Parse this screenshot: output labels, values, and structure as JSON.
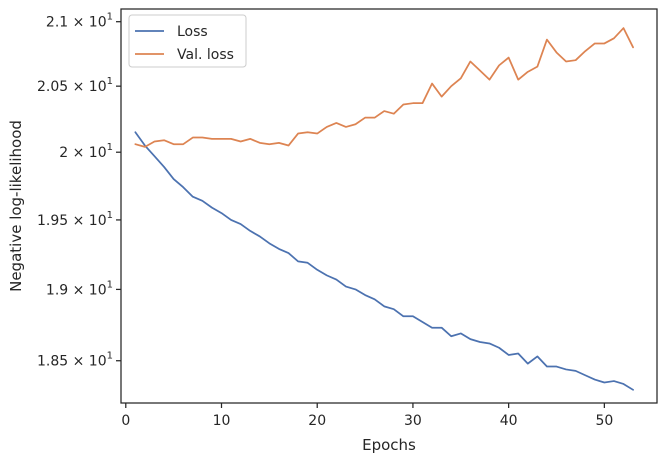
{
  "chart_data": {
    "type": "line",
    "title": "",
    "xlabel": "Epochs",
    "ylabel": "Negative log-likelihood",
    "xlim": [
      -0.5,
      55.5
    ],
    "ylim": [
      18.21,
      21.1
    ],
    "xticks": [
      0,
      10,
      20,
      30,
      40,
      50
    ],
    "yticks": [
      {
        "value": 18.5,
        "label": "1.85 × 10",
        "exp": "1"
      },
      {
        "value": 19.0,
        "label": "1.9 × 10",
        "exp": "1"
      },
      {
        "value": 19.5,
        "label": "1.95 × 10",
        "exp": "1"
      },
      {
        "value": 20.0,
        "label": "2 × 10",
        "exp": "1"
      },
      {
        "value": 20.5,
        "label": "2.05 × 10",
        "exp": "1"
      },
      {
        "value": 21.0,
        "label": "2.1 × 10",
        "exp": "1"
      }
    ],
    "y_scale": "log",
    "grid": false,
    "legend_position": "top-left",
    "x": [
      1,
      2,
      3,
      4,
      5,
      6,
      7,
      8,
      9,
      10,
      11,
      12,
      13,
      14,
      15,
      16,
      17,
      18,
      19,
      20,
      21,
      22,
      23,
      24,
      25,
      26,
      27,
      28,
      29,
      30,
      31,
      32,
      33,
      34,
      35,
      36,
      37,
      38,
      39,
      40,
      41,
      42,
      43,
      44,
      45,
      46,
      47,
      48,
      49,
      50,
      51,
      52,
      53
    ],
    "series": [
      {
        "name": "Loss",
        "color": "#4c72b0",
        "values": [
          20.15,
          20.05,
          19.97,
          19.89,
          19.8,
          19.74,
          19.67,
          19.64,
          19.59,
          19.55,
          19.5,
          19.47,
          19.42,
          19.38,
          19.33,
          19.29,
          19.26,
          19.2,
          19.19,
          19.14,
          19.1,
          19.07,
          19.02,
          19.0,
          18.96,
          18.93,
          18.88,
          18.86,
          18.81,
          18.81,
          18.77,
          18.73,
          18.73,
          18.67,
          18.69,
          18.65,
          18.63,
          18.62,
          18.59,
          18.54,
          18.55,
          18.48,
          18.53,
          18.46,
          18.46,
          18.44,
          18.43,
          18.4,
          18.37,
          18.35,
          18.36,
          18.34,
          18.3
        ]
      },
      {
        "name": "Val. loss",
        "color": "#dd8452",
        "values": [
          20.06,
          20.04,
          20.08,
          20.09,
          20.06,
          20.06,
          20.11,
          20.11,
          20.1,
          20.1,
          20.1,
          20.08,
          20.1,
          20.07,
          20.06,
          20.07,
          20.05,
          20.14,
          20.15,
          20.14,
          20.19,
          20.22,
          20.19,
          20.21,
          20.26,
          20.26,
          20.31,
          20.29,
          20.36,
          20.37,
          20.37,
          20.52,
          20.42,
          20.5,
          20.56,
          20.69,
          20.62,
          20.55,
          20.66,
          20.72,
          20.55,
          20.61,
          20.65,
          20.86,
          20.76,
          20.69,
          20.7,
          20.77,
          20.83,
          20.83,
          20.87,
          20.95,
          20.8
        ]
      }
    ]
  }
}
